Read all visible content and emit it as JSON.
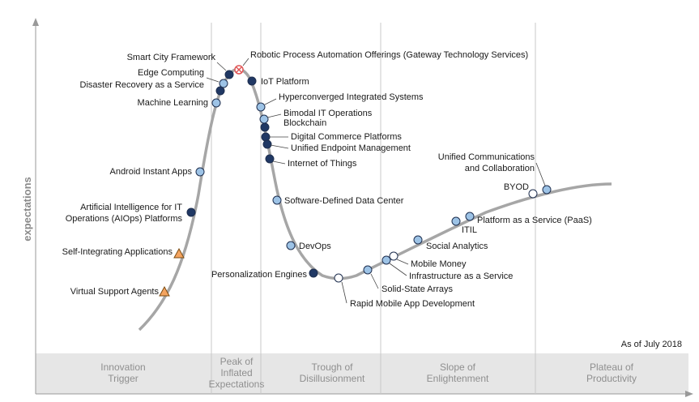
{
  "chart_data": {
    "type": "scatter",
    "title": "",
    "ylabel": "expectations",
    "xlabel": "",
    "as_of": "As of July 2018",
    "phases": [
      {
        "lines": [
          "Innovation",
          "Trigger"
        ]
      },
      {
        "lines": [
          "Peak of",
          "Inflated",
          "Expectations"
        ]
      },
      {
        "lines": [
          "Trough of",
          "Disillusionment"
        ]
      },
      {
        "lines": [
          "Slope of",
          "Enlightenment"
        ]
      },
      {
        "lines": [
          "Plateau of",
          "Productivity"
        ]
      }
    ],
    "colors": {
      "curve": "#a6a6a6",
      "circle_light": "#9dc3e6",
      "circle_dark": "#203864",
      "circle_white": "#ffffff",
      "triangle": "#f4a460",
      "obsolete": "#e05555",
      "phase_band": "#e6e6e6",
      "separator": "#c8c8c8"
    },
    "technologies": [
      {
        "name": "Virtual Support Agents",
        "marker": "triangle"
      },
      {
        "name": "Self-Integrating Applications",
        "marker": "triangle"
      },
      {
        "name": [
          "Artificial Intelligence for IT",
          "Operations (AIOps) Platforms"
        ],
        "marker": "dark"
      },
      {
        "name": "Android Instant Apps",
        "marker": "light"
      },
      {
        "name": "Machine Learning",
        "marker": "light"
      },
      {
        "name": "Disaster Recovery as a Service",
        "marker": "dark"
      },
      {
        "name": "Edge Computing",
        "marker": "light"
      },
      {
        "name": "Smart City Framework",
        "marker": "dark"
      },
      {
        "name": "Robotic Process Automation Offerings (Gateway Technology Services)",
        "marker": "obsolete"
      },
      {
        "name": "IoT Platform",
        "marker": "dark"
      },
      {
        "name": "Hyperconverged Integrated Systems",
        "marker": "light"
      },
      {
        "name": "Bimodal IT Operations",
        "marker": "light"
      },
      {
        "name": "Blockchain",
        "marker": "dark"
      },
      {
        "name": "Digital Commerce Platforms",
        "marker": "dark"
      },
      {
        "name": "Unified Endpoint Management",
        "marker": "dark"
      },
      {
        "name": "Internet of Things",
        "marker": "dark"
      },
      {
        "name": "Software-Defined Data Center",
        "marker": "light"
      },
      {
        "name": "DevOps",
        "marker": "light"
      },
      {
        "name": "Personalization Engines",
        "marker": "dark"
      },
      {
        "name": "Rapid Mobile App Development",
        "marker": "white"
      },
      {
        "name": "Solid-State Arrays",
        "marker": "light"
      },
      {
        "name": "Infrastructure as a Service",
        "marker": "light"
      },
      {
        "name": "Mobile Money",
        "marker": "white"
      },
      {
        "name": "Social Analytics",
        "marker": "light"
      },
      {
        "name": "ITIL",
        "marker": "light"
      },
      {
        "name": "Platform as a Service (PaaS)",
        "marker": "light"
      },
      {
        "name": "BYOD",
        "marker": "white"
      },
      {
        "name": [
          "Unified Communications",
          "and Collaboration"
        ],
        "marker": "light"
      }
    ]
  }
}
